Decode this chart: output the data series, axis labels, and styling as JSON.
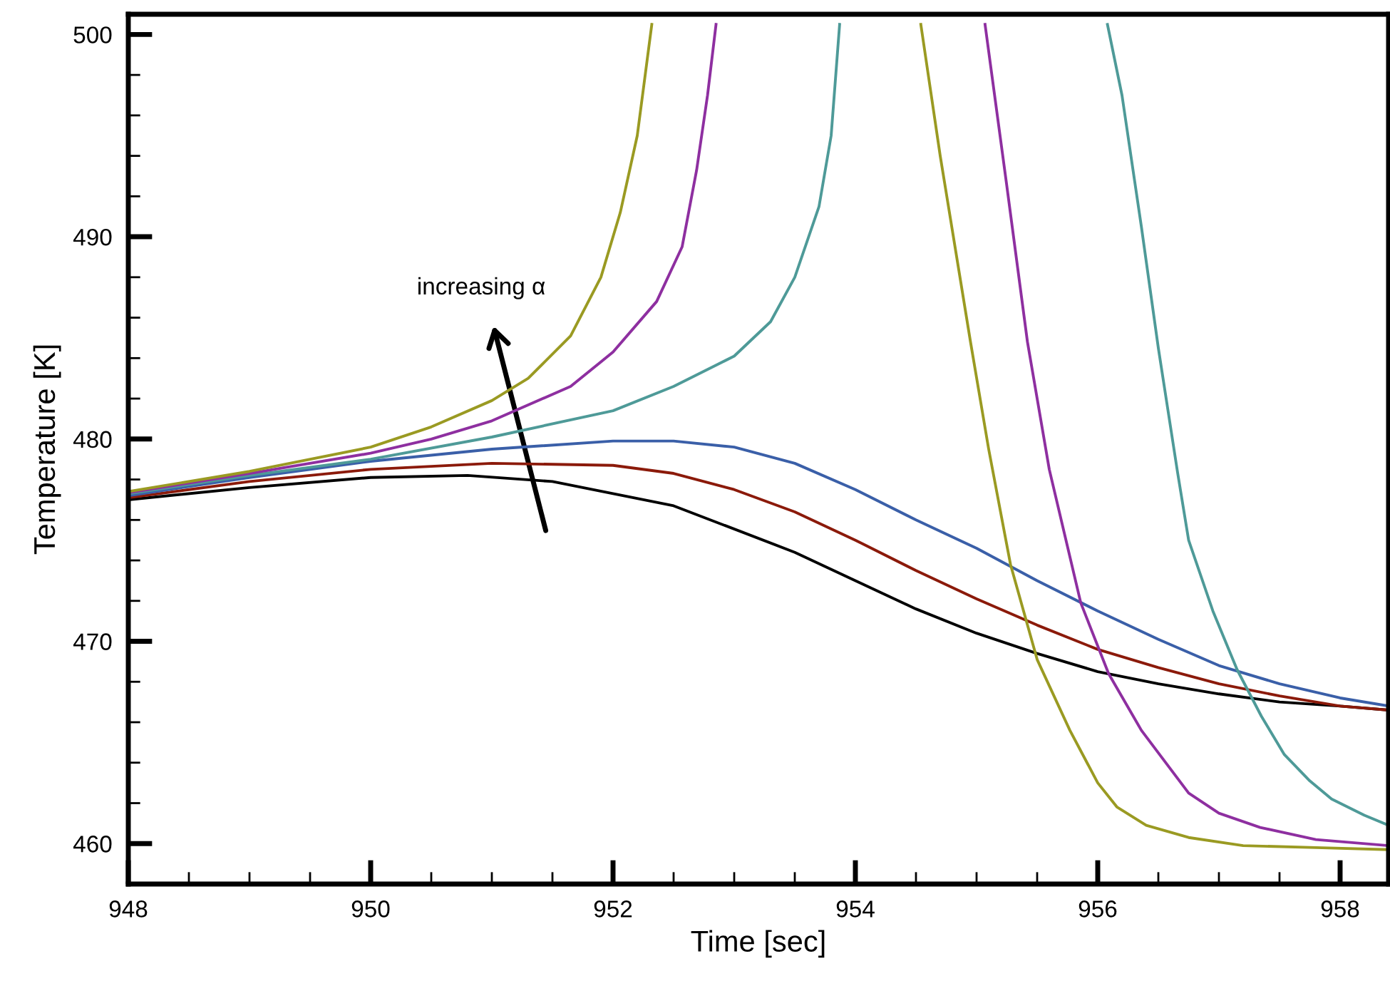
{
  "chart_data": {
    "type": "line",
    "xlabel": "Time [sec]",
    "ylabel": "Temperature [K]",
    "xlim": [
      948,
      958.4
    ],
    "ylim": [
      458,
      501
    ],
    "xticks": [
      948,
      {
        "value": 948.5,
        "label": null
      },
      {
        "value": 949,
        "label": null
      },
      {
        "value": 949.5,
        "label": null
      },
      950,
      {
        "value": 950.5,
        "label": null
      },
      {
        "value": 951,
        "label": null
      },
      {
        "value": 951.5,
        "label": null
      },
      952,
      {
        "value": 952.5,
        "label": null
      },
      {
        "value": 953,
        "label": null
      },
      {
        "value": 953.5,
        "label": null
      },
      954,
      {
        "value": 954.5,
        "label": null
      },
      {
        "value": 955,
        "label": null
      },
      {
        "value": 955.5,
        "label": null
      },
      956,
      {
        "value": 956.5,
        "label": null
      },
      {
        "value": 957,
        "label": null
      },
      {
        "value": 957.5,
        "label": null
      },
      958
    ],
    "yticks": [
      460,
      {
        "value": 462,
        "label": null
      },
      {
        "value": 464,
        "label": null
      },
      {
        "value": 466,
        "label": null
      },
      {
        "value": 468,
        "label": null
      },
      470,
      {
        "value": 472,
        "label": null
      },
      {
        "value": 474,
        "label": null
      },
      {
        "value": 476,
        "label": null
      },
      {
        "value": 478,
        "label": null
      },
      480,
      {
        "value": 482,
        "label": null
      },
      {
        "value": 484,
        "label": null
      },
      {
        "value": 486,
        "label": null
      },
      {
        "value": 488,
        "label": null
      },
      490,
      {
        "value": 492,
        "label": null
      },
      {
        "value": 494,
        "label": null
      },
      {
        "value": 496,
        "label": null
      },
      {
        "value": 498,
        "label": null
      },
      500
    ],
    "grid": false,
    "legend": false,
    "marker": "none",
    "line_style": "solid",
    "annotations": [
      "increasing α"
    ],
    "series": [
      {
        "color": "#000000",
        "x": [
          948,
          949,
          950,
          950.8,
          951.5,
          952.5,
          953.5,
          954,
          954.5,
          955,
          955.5,
          956,
          956.5,
          957,
          957.5,
          958,
          958.4
        ],
        "values": [
          477.0,
          477.6,
          478.1,
          478.2,
          477.9,
          476.7,
          474.4,
          473.0,
          471.6,
          470.4,
          469.4,
          468.5,
          467.9,
          467.4,
          467.0,
          466.8,
          466.6
        ]
      },
      {
        "color": "#8b1a0a",
        "x": [
          948,
          949,
          950,
          951,
          952,
          952.5,
          953,
          953.5,
          954,
          954.5,
          955,
          955.5,
          956,
          956.5,
          957,
          957.5,
          958,
          958.4
        ],
        "values": [
          477.1,
          477.9,
          478.5,
          478.8,
          478.7,
          478.3,
          477.5,
          476.4,
          475.0,
          473.5,
          472.1,
          470.8,
          469.6,
          468.7,
          467.9,
          467.3,
          466.8,
          466.6
        ]
      },
      {
        "color": "#3a5fa8",
        "x": [
          948,
          949,
          950,
          951,
          952,
          952.5,
          953,
          953.5,
          954,
          954.5,
          955,
          955.5,
          956,
          956.5,
          957,
          957.5,
          958,
          958.4
        ],
        "values": [
          477.2,
          478.1,
          478.9,
          479.5,
          479.9,
          479.9,
          479.6,
          478.8,
          477.5,
          476.0,
          474.6,
          473.0,
          471.5,
          470.1,
          468.8,
          467.9,
          467.2,
          466.8
        ]
      },
      {
        "color": "#4e9a98",
        "x": [
          948,
          949,
          950,
          951,
          952,
          952.5,
          953,
          953.3,
          953.5,
          953.7,
          953.8,
          953.87,
          955,
          956.08,
          956.2,
          956.36,
          956.5,
          956.66,
          956.75,
          956.95,
          957.15,
          957.35,
          957.54,
          957.75,
          957.93,
          958.2,
          958.4
        ],
        "values": [
          477.3,
          478.2,
          479.0,
          480.1,
          481.4,
          482.6,
          484.1,
          485.8,
          488.0,
          491.5,
          495.0,
          500.5,
          null,
          500.5,
          497,
          490.5,
          484.5,
          478.3,
          475.0,
          471.5,
          468.6,
          466.3,
          464.4,
          463.1,
          462.2,
          461.4,
          460.9
        ]
      },
      {
        "color": "#8e2fa0",
        "x": [
          948,
          949,
          950,
          950.5,
          951,
          951.65,
          952,
          952.36,
          952.57,
          952.69,
          952.78,
          952.85,
          954,
          955.07,
          955.25,
          955.42,
          955.6,
          955.86,
          956.09,
          956.36,
          956.75,
          957,
          957.34,
          957.8,
          958.4
        ],
        "values": [
          477.35,
          478.3,
          479.3,
          480.0,
          480.9,
          482.6,
          484.3,
          486.8,
          489.5,
          493.3,
          497,
          500.5,
          null,
          500.5,
          492.5,
          484.8,
          478.5,
          471.9,
          468.4,
          465.6,
          462.5,
          461.5,
          460.8,
          460.2,
          459.9
        ]
      },
      {
        "color": "#9a9a22",
        "x": [
          948,
          949,
          950,
          950.5,
          951,
          951.3,
          951.65,
          951.9,
          952.06,
          952.2,
          952.32,
          953.4,
          954.54,
          954.7,
          954.95,
          955.1,
          955.28,
          955.5,
          955.77,
          956,
          956.16,
          956.4,
          956.75,
          957.2,
          957.8,
          958.4
        ],
        "values": [
          477.4,
          478.4,
          479.6,
          480.6,
          481.9,
          483.0,
          485.1,
          488.0,
          491.2,
          495,
          500.5,
          null,
          500.5,
          494,
          484.8,
          479.5,
          473.8,
          469.1,
          465.6,
          463.0,
          461.8,
          460.9,
          460.3,
          459.9,
          459.8,
          459.7
        ]
      }
    ]
  }
}
